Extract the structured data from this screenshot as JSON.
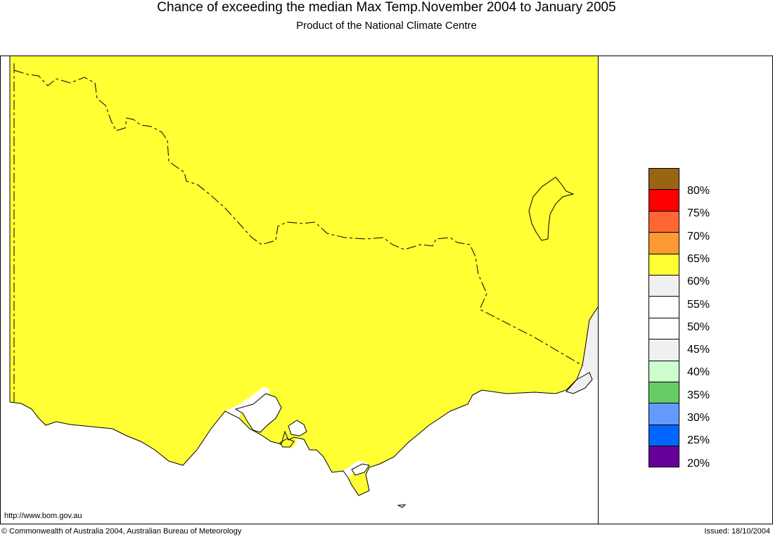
{
  "header": {
    "title": "Chance of exceeding the median Max Temp.November 2004 to January 2005",
    "subtitle": "Product of the National Climate Centre"
  },
  "map": {
    "region": "Victoria, Australia",
    "fill_color": "#ffff33",
    "land_class": "60%",
    "east_coast_class": "55%"
  },
  "legend": {
    "swatches": [
      {
        "color": "#996515"
      },
      {
        "color": "#ff0000"
      },
      {
        "color": "#ff6633"
      },
      {
        "color": "#ff9933"
      },
      {
        "color": "#ffff33"
      },
      {
        "color": "#f0f0f0"
      },
      {
        "color": "#ffffff"
      },
      {
        "color": "#ffffff"
      },
      {
        "color": "#f0f0f0"
      },
      {
        "color": "#ccffcc"
      },
      {
        "color": "#66cc66"
      },
      {
        "color": "#6699ff"
      },
      {
        "color": "#0066ff"
      },
      {
        "color": "#660099"
      }
    ],
    "labels": [
      "80%",
      "75%",
      "70%",
      "65%",
      "60%",
      "55%",
      "50%",
      "45%",
      "40%",
      "35%",
      "30%",
      "25%",
      "20%"
    ]
  },
  "footer": {
    "url": "http://www.bom.gov.au",
    "copyright": "© Commonwealth of Australia 2004, Australian Bureau of Meteorology",
    "issued": "Issued: 18/10/2004"
  }
}
